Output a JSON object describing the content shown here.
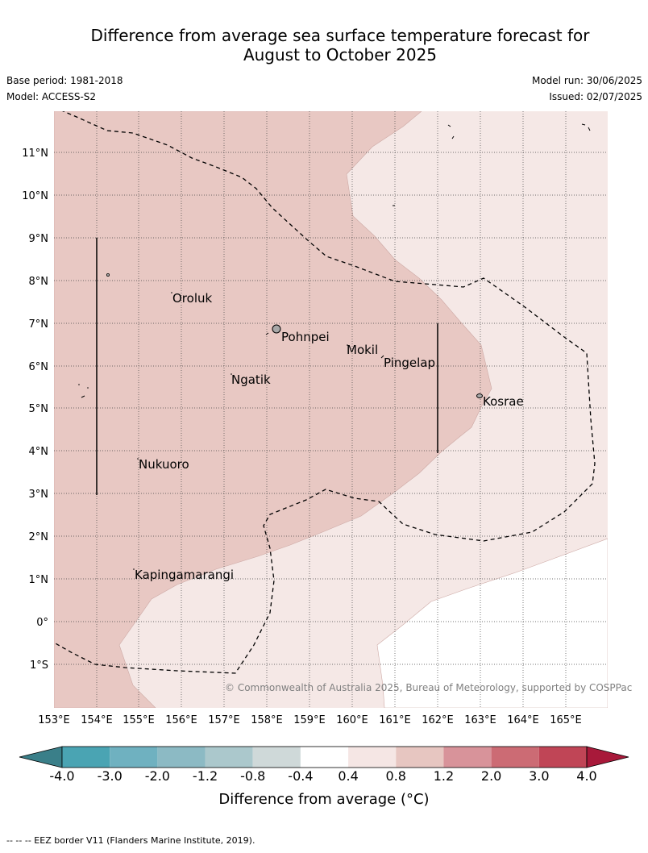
{
  "header": {
    "title_line1": "Difference from average sea surface temperature forecast for",
    "title_line2": "August to October 2025",
    "base_period": "Base period: 1981-2018",
    "model": "Model: ACCESS-S2",
    "model_run": "Model run: 30/06/2025",
    "issued": "Issued: 02/07/2025"
  },
  "map": {
    "lon_ticks": [
      "153°E",
      "154°E",
      "155°E",
      "156°E",
      "157°E",
      "158°E",
      "159°E",
      "160°E",
      "161°E",
      "162°E",
      "163°E",
      "164°E",
      "165°E"
    ],
    "lat_ticks": [
      "11°N",
      "10°N",
      "9°N",
      "8°N",
      "7°N",
      "6°N",
      "5°N",
      "4°N",
      "3°N",
      "2°N",
      "1°N",
      "0°",
      "1°S"
    ],
    "places": [
      {
        "name": "Oroluk"
      },
      {
        "name": "Pohnpei"
      },
      {
        "name": "Mokil"
      },
      {
        "name": "Pingelap"
      },
      {
        "name": "Ngatik"
      },
      {
        "name": "Kosrae"
      },
      {
        "name": "Nukuoro"
      },
      {
        "name": "Kapingamarangi"
      }
    ],
    "copyright": "© Commonwealth of Australia 2025, Bureau of Meteorology, supported by COSPPac"
  },
  "colorbar": {
    "labels": [
      "-4.0",
      "-3.0",
      "-2.0",
      "-1.2",
      "-0.8",
      "-0.4",
      "0.4",
      "0.8",
      "1.2",
      "2.0",
      "3.0",
      "4.0"
    ],
    "colors": [
      "#3a7f89",
      "#4aa4b3",
      "#6fb1c0",
      "#8cbac4",
      "#abc8cc",
      "#cfd9d9",
      "#ffffff",
      "#f5e6e4",
      "#e7c6c1",
      "#d8939a",
      "#cc6b74",
      "#c04556",
      "#a8193a"
    ],
    "label": "Difference from average (°C)"
  },
  "footer": {
    "eez_note": "--  --  -- EEZ border V11 (Flanders Marine Institute, 2019)."
  }
}
